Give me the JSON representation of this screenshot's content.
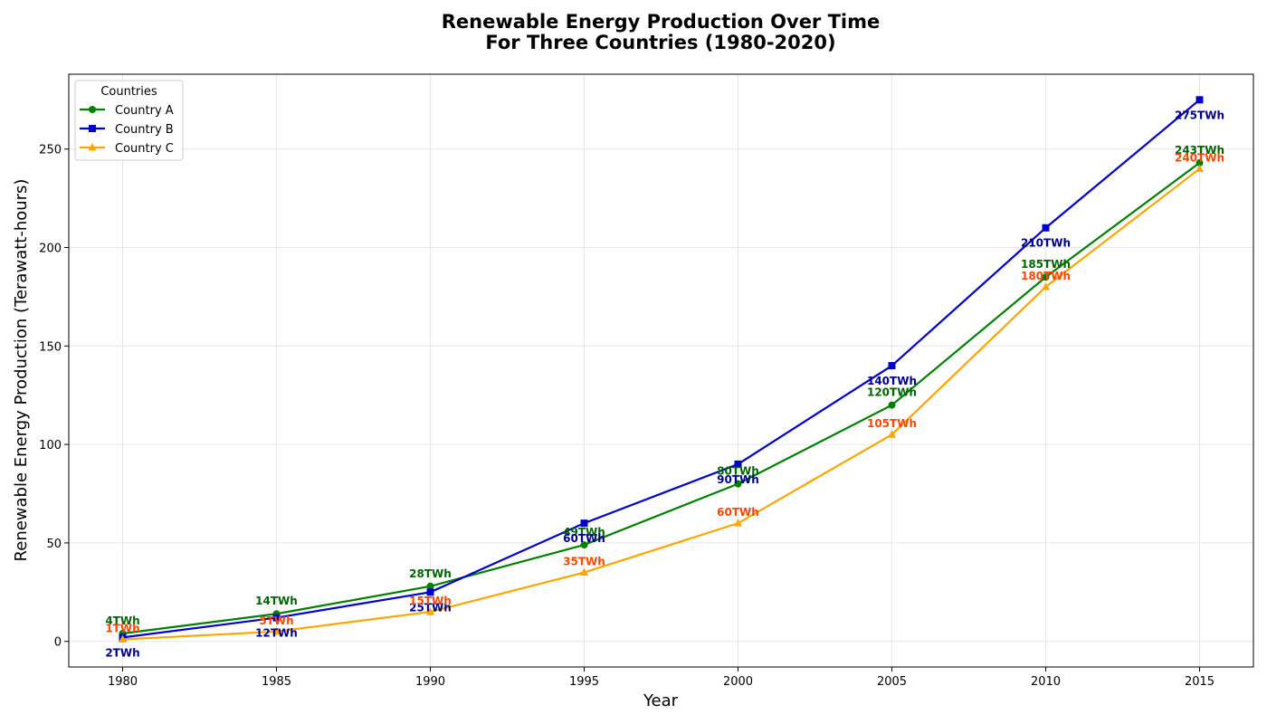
{
  "chart_data": {
    "type": "line",
    "title": "Renewable Energy Production Over Time",
    "subtitle": "For Three Countries (1980-2020)",
    "xlabel": "Year",
    "ylabel": "Renewable Energy Production (Terawatt-hours)",
    "x": [
      1980,
      1985,
      1990,
      1995,
      2000,
      2005,
      2010,
      2015
    ],
    "xlim": [
      1978.25,
      2016.75
    ],
    "ylim": [
      -13,
      288
    ],
    "xticks": [
      "1980",
      "1985",
      "1990",
      "1995",
      "2000",
      "2005",
      "2010",
      "2015"
    ],
    "yticks": [
      "0",
      "50",
      "100",
      "150",
      "200",
      "250"
    ],
    "grid": true,
    "legend": {
      "title": "Countries",
      "placement": "upper-left"
    },
    "series": [
      {
        "name": "Country A",
        "color": "#008000",
        "label_color": "#006400",
        "marker": "circle",
        "values": [
          4,
          14,
          28,
          49,
          80,
          120,
          185,
          243
        ],
        "labels": [
          "4TWh",
          "14TWh",
          "28TWh",
          "49TWh",
          "80TWh",
          "120TWh",
          "185TWh",
          "243TWh"
        ]
      },
      {
        "name": "Country B",
        "color": "#0000cd",
        "label_color": "#00008b",
        "marker": "square",
        "values": [
          2,
          12,
          25,
          60,
          90,
          140,
          210,
          275
        ],
        "labels": [
          "2TWh",
          "12TWh",
          "25TWh",
          "60TWh",
          "90TWh",
          "140TWh",
          "210TWh",
          "275TWh"
        ]
      },
      {
        "name": "Country C",
        "color": "#ffa500",
        "label_color": "#ff4500",
        "marker": "triangle",
        "values": [
          1,
          5,
          15,
          35,
          60,
          105,
          180,
          240
        ],
        "labels": [
          "1TWh",
          "5TWh",
          "15TWh",
          "35TWh",
          "60TWh",
          "105TWh",
          "180TWh",
          "240TWh"
        ]
      }
    ]
  }
}
